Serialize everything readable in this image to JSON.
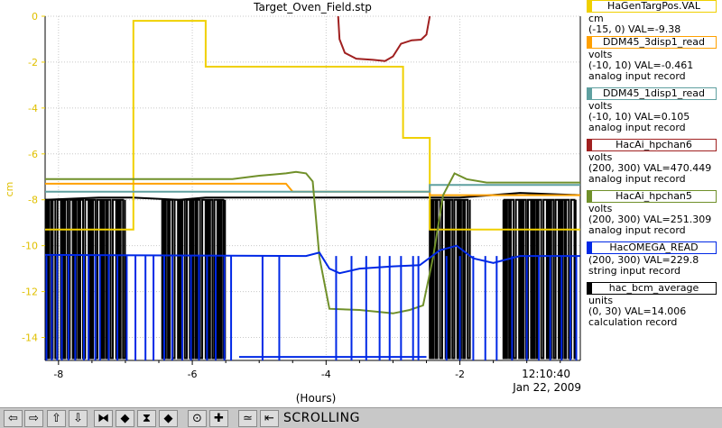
{
  "chart_data": {
    "type": "line",
    "title": "Target_Oven_Field.stp",
    "xlabel": "(Hours)",
    "ylabel": "cm",
    "xlim": [
      -8.2,
      -0.2
    ],
    "ylim": [
      -15,
      0
    ],
    "x_ticks": [
      -8,
      -6,
      -4,
      -2
    ],
    "x_tick_labels": [
      "-8",
      "-6",
      "-4",
      "-2"
    ],
    "y_ticks": [
      0,
      -2,
      -4,
      -6,
      -8,
      -10,
      -12,
      -14
    ],
    "y_tick_labels": [
      "0",
      "-2",
      "-4",
      "-6",
      "-8",
      "-10",
      "-12",
      "-14"
    ],
    "time_label": "12:10:40",
    "date_label": "Jan 22, 2009",
    "grid": true,
    "legend_position": "right",
    "series": [
      {
        "name": "HaGenTargPos.VAL",
        "color": "#f0d000",
        "points": [
          [
            -8.2,
            -9.3
          ],
          [
            -6.88,
            -9.3
          ],
          [
            -6.88,
            -0.2
          ],
          [
            -5.8,
            -0.2
          ],
          [
            -5.8,
            -2.2
          ],
          [
            -2.85,
            -2.2
          ],
          [
            -2.85,
            -5.3
          ],
          [
            -2.45,
            -5.3
          ],
          [
            -2.45,
            -9.3
          ],
          [
            -0.2,
            -9.3
          ]
        ]
      },
      {
        "name": "DDM45_3disp1_read",
        "color": "#ffa000",
        "points": [
          [
            -8.2,
            -7.3
          ],
          [
            -4.6,
            -7.3
          ],
          [
            -4.5,
            -7.65
          ],
          [
            -2.45,
            -7.65
          ],
          [
            -2.45,
            -7.8
          ],
          [
            -0.2,
            -7.8
          ]
        ]
      },
      {
        "name": "DDM45_1disp1_read",
        "color": "#5fa0a0",
        "points": [
          [
            -8.2,
            -7.65
          ],
          [
            -2.45,
            -7.65
          ],
          [
            -2.45,
            -7.35
          ],
          [
            -0.2,
            -7.35
          ]
        ]
      },
      {
        "name": "HacAi_hpchan6",
        "color": "#a02020",
        "points": [
          [
            -3.82,
            0.0
          ],
          [
            -3.8,
            -1.0
          ],
          [
            -3.72,
            -1.6
          ],
          [
            -3.55,
            -1.85
          ],
          [
            -3.3,
            -1.9
          ],
          [
            -3.12,
            -1.95
          ],
          [
            -3.0,
            -1.75
          ],
          [
            -2.88,
            -1.2
          ],
          [
            -2.72,
            -1.05
          ],
          [
            -2.58,
            -1.02
          ],
          [
            -2.5,
            -0.8
          ],
          [
            -2.45,
            0.0
          ]
        ]
      },
      {
        "name": "HacAi_hpchan5",
        "color": "#70902a",
        "points": [
          [
            -8.2,
            -7.1
          ],
          [
            -5.4,
            -7.1
          ],
          [
            -5.0,
            -6.95
          ],
          [
            -4.8,
            -6.9
          ],
          [
            -4.6,
            -6.85
          ],
          [
            -4.45,
            -6.78
          ],
          [
            -4.3,
            -6.85
          ],
          [
            -4.2,
            -7.2
          ],
          [
            -4.1,
            -10.5
          ],
          [
            -3.95,
            -12.75
          ],
          [
            -3.5,
            -12.8
          ],
          [
            -3.0,
            -12.95
          ],
          [
            -2.75,
            -12.8
          ],
          [
            -2.55,
            -12.6
          ],
          [
            -2.4,
            -10.5
          ],
          [
            -2.25,
            -7.8
          ],
          [
            -2.08,
            -6.85
          ],
          [
            -1.9,
            -7.1
          ],
          [
            -1.6,
            -7.25
          ],
          [
            -0.2,
            -7.25
          ]
        ]
      },
      {
        "name": "HacOMEGA_READ",
        "color": "#0028e6",
        "points": [
          [
            -8.2,
            -10.4
          ],
          [
            -4.3,
            -10.45
          ],
          [
            -4.1,
            -10.3
          ],
          [
            -3.95,
            -11.0
          ],
          [
            -3.8,
            -11.2
          ],
          [
            -3.5,
            -11.0
          ],
          [
            -3.0,
            -10.9
          ],
          [
            -2.6,
            -10.85
          ],
          [
            -2.3,
            -10.2
          ],
          [
            -2.05,
            -10.0
          ],
          [
            -1.8,
            -10.55
          ],
          [
            -1.5,
            -10.75
          ],
          [
            -1.3,
            -10.6
          ],
          [
            -1.1,
            -10.45
          ],
          [
            -0.2,
            -10.45
          ]
        ],
        "drops": [
          -8.18,
          -8.1,
          -8.02,
          -7.95,
          -7.85,
          -7.75,
          -7.62,
          -7.55,
          -7.45,
          -7.38,
          -7.25,
          -7.12,
          -6.98,
          -6.85,
          -6.7,
          -6.58,
          -6.42,
          -6.3,
          -6.15,
          -6.02,
          -5.9,
          -5.78,
          -5.65,
          -5.52,
          -5.42,
          -4.95,
          -4.7,
          -3.85,
          -3.62,
          -3.4,
          -3.2,
          -3.05,
          -2.88,
          -2.7,
          -2.62,
          -2.2,
          -2.0,
          -1.8,
          -1.62,
          -1.45,
          -1.22,
          -1.0,
          -0.82,
          -0.65,
          -0.48,
          -0.35,
          -0.26
        ]
      },
      {
        "name": "hac_bcm_average",
        "color": "#000000",
        "points": [
          [
            -8.2,
            -8.0
          ],
          [
            -7.4,
            -7.9
          ],
          [
            -6.9,
            -7.9
          ],
          [
            -6.2,
            -8.0
          ],
          [
            -5.8,
            -7.9
          ],
          [
            -5.5,
            -7.9
          ],
          [
            -2.0,
            -7.9
          ],
          [
            -1.1,
            -7.7
          ],
          [
            -0.2,
            -7.8
          ]
        ],
        "bursts": [
          [
            -8.2,
            -7.0
          ],
          [
            -6.45,
            -5.5
          ],
          [
            -2.45,
            -1.85
          ],
          [
            -1.35,
            -0.25
          ]
        ]
      }
    ]
  },
  "legend": [
    {
      "name": "HaGenTargPos.VAL",
      "color": "#f0d000",
      "lines": [
        "cm",
        "(-15, 0) VAL=-9.38"
      ]
    },
    {
      "name": "DDM45_3disp1_read",
      "color": "#ffa000",
      "lines": [
        "volts",
        "(-10, 10) VAL=-0.461",
        "analog input record"
      ]
    },
    {
      "name": "DDM45_1disp1_read",
      "color": "#5fa0a0",
      "lines": [
        "volts",
        "(-10, 10) VAL=0.105",
        "analog input record"
      ]
    },
    {
      "name": "HacAi_hpchan6",
      "color": "#a02020",
      "lines": [
        "volts",
        "(200, 300) VAL=470.449",
        "analog input record"
      ]
    },
    {
      "name": "HacAi_hpchan5",
      "color": "#70902a",
      "lines": [
        "volts",
        "(200, 300) VAL=251.309",
        "analog input record"
      ]
    },
    {
      "name": "HacOMEGA_READ",
      "color": "#0028e6",
      "lines": [
        "(200, 300) VAL=229.8",
        "string input record"
      ]
    },
    {
      "name": "hac_bcm_average",
      "color": "#000000",
      "lines": [
        "units",
        "(0, 30) VAL=14.006",
        "calculation record"
      ]
    }
  ],
  "toolbar": {
    "buttons": [
      {
        "icon": "arrow-left-icon",
        "glyph": "⇦"
      },
      {
        "icon": "arrow-right-icon",
        "glyph": "⇨"
      },
      {
        "icon": "arrow-up-icon",
        "glyph": "⇧"
      },
      {
        "icon": "arrow-down-icon",
        "glyph": "⇩"
      },
      {
        "icon": "zoom-in-horizontal-icon",
        "glyph": "⧓"
      },
      {
        "icon": "zoom-out-horizontal-icon",
        "glyph": "◆"
      },
      {
        "icon": "zoom-in-vertical-icon",
        "glyph": "⧗"
      },
      {
        "icon": "zoom-out-vertical-icon",
        "glyph": "◆"
      },
      {
        "icon": "config-icon",
        "glyph": "⊙"
      },
      {
        "icon": "add-icon",
        "glyph": "✚"
      },
      {
        "icon": "autoscale-icon",
        "glyph": "≃"
      },
      {
        "icon": "scroll-back-icon",
        "glyph": "⇤"
      }
    ],
    "status": "SCROLLING"
  }
}
